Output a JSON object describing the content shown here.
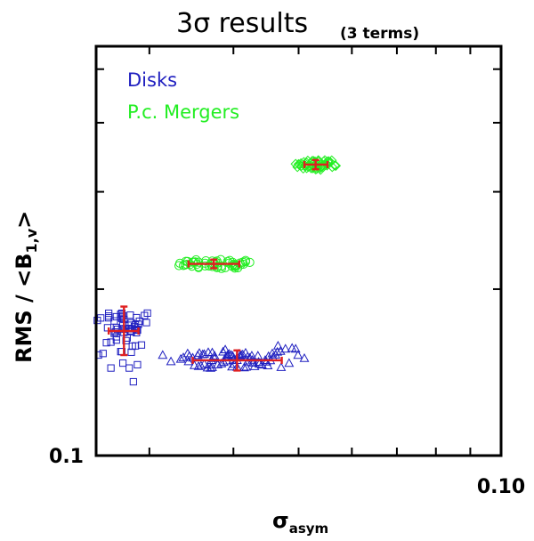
{
  "chart_data": {
    "type": "scatter",
    "title": "3σ results",
    "title_suffix": "(3 terms)",
    "xlabel": "σ",
    "xlabel_sub": "asym",
    "ylabel": "RMS / <B",
    "ylabel_sub": "1,v",
    "ylabel_end": ">",
    "x_scale": "log",
    "y_scale": "log",
    "xlim": [
      0.025,
      0.1
    ],
    "ylim": [
      0.1,
      0.55
    ],
    "x_tick_labels": [
      {
        "value": 0.1,
        "label": "0.10"
      }
    ],
    "y_tick_labels": [
      {
        "value": 0.1,
        "label": "0.1"
      }
    ],
    "x_minor_ticks": [
      0.03,
      0.04,
      0.05,
      0.06,
      0.07,
      0.08,
      0.09
    ],
    "y_minor_ticks": [
      0.2,
      0.3,
      0.4,
      0.5
    ],
    "grid": false,
    "legend_position": "top-left",
    "series": [
      {
        "name": "Disks",
        "color": "#2020c0",
        "marker": "square",
        "center": [
          0.0275,
          0.168
        ],
        "x_err": [
          0.0261,
          0.0289
        ],
        "y_err": [
          0.152,
          0.186
        ],
        "points": [
          [
            0.0254,
            0.1774
          ],
          [
            0.0273,
            0.1542
          ],
          [
            0.0281,
            0.1682
          ],
          [
            0.0272,
            0.1781
          ],
          [
            0.0288,
            0.1686
          ],
          [
            0.0272,
            0.1801
          ],
          [
            0.0261,
            0.1775
          ],
          [
            0.0266,
            0.1664
          ],
          [
            0.0272,
            0.1542
          ],
          [
            0.0261,
            0.1788
          ],
          [
            0.028,
            0.1721
          ],
          [
            0.0251,
            0.1756
          ],
          [
            0.0268,
            0.1618
          ],
          [
            0.0289,
            0.1728
          ],
          [
            0.0283,
            0.1577
          ],
          [
            0.0277,
            0.1614
          ],
          [
            0.0295,
            0.1792
          ],
          [
            0.0282,
            0.1538
          ],
          [
            0.0268,
            0.1705
          ],
          [
            0.028,
            0.1698
          ],
          [
            0.0287,
            0.1668
          ],
          [
            0.0267,
            0.1673
          ],
          [
            0.0286,
            0.1724
          ],
          [
            0.0287,
            0.169
          ],
          [
            0.0292,
            0.1585
          ],
          [
            0.0273,
            0.1697
          ],
          [
            0.0274,
            0.1727
          ],
          [
            0.0274,
            0.179
          ],
          [
            0.0288,
            0.1691
          ],
          [
            0.0281,
            0.1795
          ],
          [
            0.0283,
            0.1696
          ],
          [
            0.0261,
            0.1809
          ],
          [
            0.0282,
            0.1738
          ],
          [
            0.0273,
            0.1809
          ],
          [
            0.0276,
            0.1693
          ],
          [
            0.0278,
            0.1632
          ],
          [
            0.0268,
            0.1783
          ],
          [
            0.0287,
            0.1776
          ],
          [
            0.0269,
            0.1692
          ],
          [
            0.0298,
            0.181
          ],
          [
            0.0266,
            0.1752
          ],
          [
            0.0275,
            0.1763
          ],
          [
            0.0286,
            0.1579
          ],
          [
            0.026,
            0.1703
          ],
          [
            0.0282,
            0.1675
          ],
          [
            0.0297,
            0.174
          ],
          [
            0.0273,
            0.1771
          ],
          [
            0.0268,
            0.164
          ],
          [
            0.0275,
            0.167
          ],
          [
            0.0263,
            0.1604
          ],
          [
            0.029,
            0.175
          ],
          [
            0.0285,
            0.1712
          ],
          [
            0.0259,
            0.16
          ],
          [
            0.0252,
            0.152
          ],
          [
            0.0256,
            0.153
          ],
          [
            0.0274,
            0.147
          ],
          [
            0.0263,
            0.144
          ],
          [
            0.028,
            0.144
          ],
          [
            0.0288,
            0.146
          ],
          [
            0.0284,
            0.136
          ]
        ]
      },
      {
        "name": "",
        "color": "#2020c0",
        "marker": "triangle",
        "center": [
          0.0405,
          0.1487
        ],
        "x_err": [
          0.0348,
          0.0472
        ],
        "y_err": [
          0.1425,
          0.155
        ],
        "points": [
          [
            0.0368,
            0.146
          ],
          [
            0.0371,
            0.1488
          ],
          [
            0.0401,
            0.1464
          ],
          [
            0.0397,
            0.152
          ],
          [
            0.0405,
            0.1446
          ],
          [
            0.0358,
            0.1454
          ],
          [
            0.0375,
            0.1516
          ],
          [
            0.0457,
            0.153
          ],
          [
            0.0427,
            0.1489
          ],
          [
            0.0372,
            0.1536
          ],
          [
            0.0448,
            0.1478
          ],
          [
            0.0426,
            0.1516
          ],
          [
            0.0398,
            0.1448
          ],
          [
            0.0371,
            0.1488
          ],
          [
            0.0451,
            0.1512
          ],
          [
            0.0372,
            0.1445
          ],
          [
            0.0411,
            0.152
          ],
          [
            0.042,
            0.151
          ],
          [
            0.0441,
            0.146
          ],
          [
            0.0454,
            0.1486
          ],
          [
            0.045,
            0.1455
          ],
          [
            0.0399,
            0.1514
          ],
          [
            0.043,
            0.145
          ],
          [
            0.0462,
            0.1522
          ],
          [
            0.0405,
            0.1488
          ],
          [
            0.0384,
            0.1467
          ],
          [
            0.0428,
            0.1472
          ],
          [
            0.0415,
            0.1443
          ],
          [
            0.0423,
            0.1502
          ],
          [
            0.0367,
            0.1538
          ],
          [
            0.0392,
            0.1508
          ],
          [
            0.0366,
            0.1442
          ],
          [
            0.036,
            0.1524
          ],
          [
            0.0344,
            0.1514
          ],
          [
            0.0417,
            0.1534
          ],
          [
            0.0408,
            0.1528
          ],
          [
            0.0392,
            0.1519
          ],
          [
            0.0362,
            0.1526
          ],
          [
            0.0437,
            0.1465
          ],
          [
            0.0356,
            0.1533
          ],
          [
            0.0386,
            0.1541
          ],
          [
            0.0391,
            0.1485
          ],
          [
            0.0348,
            0.1503
          ],
          [
            0.0418,
            0.1447
          ],
          [
            0.042,
            0.1479
          ],
          [
            0.0355,
            0.1451
          ],
          [
            0.0387,
            0.1476
          ],
          [
            0.0343,
            0.148
          ],
          [
            0.0409,
            0.1515
          ],
          [
            0.0394,
            0.1527
          ],
          [
            0.0471,
            0.1445
          ],
          [
            0.0465,
            0.154
          ],
          [
            0.0362,
            0.1465
          ],
          [
            0.0413,
            0.1523
          ],
          [
            0.04,
            0.149
          ],
          [
            0.039,
            0.151
          ],
          [
            0.0342,
            0.153
          ],
          [
            0.0337,
            0.1505
          ],
          [
            0.0436,
            0.1477
          ],
          [
            0.0379,
            0.1461
          ],
          [
            0.0435,
            0.1516
          ],
          [
            0.0446,
            0.1488
          ],
          [
            0.0458,
            0.1506
          ],
          [
            0.047,
            0.1545
          ],
          [
            0.035,
            0.1456
          ],
          [
            0.0334,
            0.1495
          ],
          [
            0.0354,
            0.1518
          ],
          [
            0.0375,
            0.15
          ],
          [
            0.0389,
            0.1555
          ],
          [
            0.037,
            0.144
          ],
          [
            0.0478,
            0.156
          ],
          [
            0.0489,
            0.1565
          ],
          [
            0.0499,
            0.152
          ],
          [
            0.051,
            0.15
          ],
          [
            0.0495,
            0.156
          ],
          [
            0.0484,
            0.147
          ],
          [
            0.0466,
            0.158
          ],
          [
            0.0314,
            0.152
          ],
          [
            0.0323,
            0.148
          ]
        ]
      },
      {
        "name": "P.c. Mergers",
        "color": "#22ee22",
        "marker": "circle",
        "center": [
          0.0374,
          0.2222
        ],
        "x_err": [
          0.0343,
          0.0408
        ],
        "y_err": [
          0.2182,
          0.2262
        ],
        "points": [
          [
            0.0373,
            0.2225
          ],
          [
            0.0337,
            0.2207
          ],
          [
            0.0351,
            0.224
          ],
          [
            0.0376,
            0.224
          ],
          [
            0.037,
            0.2221
          ],
          [
            0.0384,
            0.2201
          ],
          [
            0.0403,
            0.2213
          ],
          [
            0.0379,
            0.223
          ],
          [
            0.0375,
            0.2226
          ],
          [
            0.0394,
            0.2229
          ],
          [
            0.0389,
            0.2188
          ],
          [
            0.0355,
            0.2196
          ],
          [
            0.0341,
            0.2218
          ],
          [
            0.0414,
            0.2219
          ],
          [
            0.0402,
            0.2206
          ],
          [
            0.0384,
            0.218
          ],
          [
            0.0372,
            0.2249
          ],
          [
            0.0355,
            0.2238
          ],
          [
            0.0348,
            0.2238
          ],
          [
            0.0352,
            0.226
          ],
          [
            0.0345,
            0.2217
          ],
          [
            0.0372,
            0.2198
          ],
          [
            0.0417,
            0.2254
          ],
          [
            0.0363,
            0.2203
          ],
          [
            0.0333,
            0.2228
          ],
          [
            0.0378,
            0.2188
          ],
          [
            0.0417,
            0.2241
          ],
          [
            0.0395,
            0.2254
          ],
          [
            0.0402,
            0.2184
          ],
          [
            0.04,
            0.222
          ],
          [
            0.0353,
            0.2218
          ],
          [
            0.0406,
            0.2186
          ],
          [
            0.0364,
            0.2251
          ],
          [
            0.0368,
            0.2202
          ],
          [
            0.0404,
            0.2206
          ],
          [
            0.0342,
            0.2244
          ],
          [
            0.0347,
            0.2201
          ],
          [
            0.0409,
            0.223
          ],
          [
            0.0413,
            0.2238
          ],
          [
            0.0383,
            0.2262
          ],
          [
            0.0399,
            0.2236
          ],
          [
            0.0402,
            0.2198
          ],
          [
            0.0423,
            0.2236
          ],
          [
            0.0332,
            0.2206
          ],
          [
            0.034,
            0.2246
          ],
          [
            0.0349,
            0.2239
          ],
          [
            0.0378,
            0.2249
          ],
          [
            0.0392,
            0.2244
          ],
          [
            0.0379,
            0.2197
          ],
          [
            0.0339,
            0.2213
          ],
          [
            0.0355,
            0.2188
          ],
          [
            0.0363,
            0.2228
          ],
          [
            0.0398,
            0.22
          ],
          [
            0.041,
            0.2214
          ]
        ]
      },
      {
        "name": "",
        "color": "#22ee22",
        "marker": "diamond",
        "center": [
          0.053,
          0.336
        ],
        "x_err": [
          0.051,
          0.0552
        ],
        "y_err": [
          0.3295,
          0.3425
        ],
        "points": [
          [
            0.0498,
            0.3326
          ],
          [
            0.0529,
            0.3402
          ],
          [
            0.0541,
            0.3338
          ],
          [
            0.0501,
            0.3357
          ],
          [
            0.0557,
            0.3397
          ],
          [
            0.0532,
            0.3388
          ],
          [
            0.0524,
            0.3412
          ],
          [
            0.0516,
            0.3415
          ],
          [
            0.0522,
            0.331
          ],
          [
            0.053,
            0.3294
          ],
          [
            0.0505,
            0.3343
          ],
          [
            0.0539,
            0.3319
          ],
          [
            0.0561,
            0.3327
          ],
          [
            0.0512,
            0.3343
          ],
          [
            0.0526,
            0.333
          ],
          [
            0.0552,
            0.3403
          ],
          [
            0.0527,
            0.3391
          ],
          [
            0.053,
            0.3321
          ],
          [
            0.0545,
            0.3404
          ],
          [
            0.0554,
            0.3407
          ],
          [
            0.055,
            0.3361
          ],
          [
            0.0504,
            0.3377
          ],
          [
            0.0535,
            0.3421
          ],
          [
            0.0533,
            0.3347
          ],
          [
            0.0551,
            0.3348
          ],
          [
            0.0535,
            0.3402
          ],
          [
            0.0511,
            0.3351
          ],
          [
            0.0532,
            0.33
          ],
          [
            0.05,
            0.3366
          ],
          [
            0.0549,
            0.3381
          ],
          [
            0.0519,
            0.3333
          ],
          [
            0.0517,
            0.3328
          ],
          [
            0.0537,
            0.3306
          ],
          [
            0.0547,
            0.3422
          ],
          [
            0.0508,
            0.3306
          ],
          [
            0.0566,
            0.3347
          ],
          [
            0.0522,
            0.3381
          ],
          [
            0.0534,
            0.3327
          ],
          [
            0.0514,
            0.3386
          ],
          [
            0.0544,
            0.3349
          ],
          [
            0.0525,
            0.3309
          ],
          [
            0.0526,
            0.3411
          ],
          [
            0.0514,
            0.3312
          ],
          [
            0.0509,
            0.3395
          ],
          [
            0.0568,
            0.3344
          ],
          [
            0.0544,
            0.3326
          ],
          [
            0.0539,
            0.3289
          ],
          [
            0.056,
            0.3419
          ],
          [
            0.0495,
            0.3369
          ],
          [
            0.0541,
            0.3326
          ]
        ]
      }
    ]
  }
}
